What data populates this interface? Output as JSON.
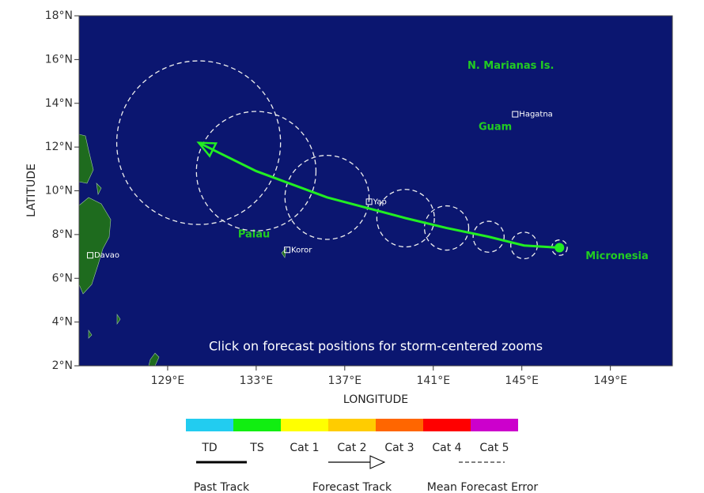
{
  "map": {
    "xlabel": "LONGITUDE",
    "ylabel": "LATITUDE",
    "xlim": [
      125,
      151.8
    ],
    "ylim": [
      2,
      18
    ],
    "xticks": [
      {
        "value": 129,
        "label": "129°E"
      },
      {
        "value": 133,
        "label": "133°E"
      },
      {
        "value": 137,
        "label": "137°E"
      },
      {
        "value": 141,
        "label": "141°E"
      },
      {
        "value": 145,
        "label": "145°E"
      },
      {
        "value": 149,
        "label": "149°E"
      }
    ],
    "yticks": [
      {
        "value": 2,
        "label": "2°N"
      },
      {
        "value": 4,
        "label": "4°N"
      },
      {
        "value": 6,
        "label": "6°N"
      },
      {
        "value": 8,
        "label": "8°N"
      },
      {
        "value": 10,
        "label": "10°N"
      },
      {
        "value": 12,
        "label": "12°N"
      },
      {
        "value": 14,
        "label": "14°N"
      },
      {
        "value": 16,
        "label": "16°N"
      },
      {
        "value": 18,
        "label": "18°N"
      }
    ],
    "note": "Click on forecast positions for storm-centered zooms",
    "places": [
      {
        "name": "Davao",
        "lon": 125.5,
        "lat": 7.05
      },
      {
        "name": "Koror",
        "lon": 134.4,
        "lat": 7.3
      },
      {
        "name": "Yap",
        "lon": 138.1,
        "lat": 9.5
      },
      {
        "name": "Hagatna",
        "lon": 144.7,
        "lat": 13.5
      }
    ],
    "regions": [
      {
        "name": "N. Marianas Is.",
        "lon": 144.5,
        "lat": 15.7
      },
      {
        "name": "Guam",
        "lon": 143.8,
        "lat": 12.9
      },
      {
        "name": "Palau",
        "lon": 132.9,
        "lat": 8.0
      },
      {
        "name": "Micronesia",
        "lon": 149.3,
        "lat": 7.0
      }
    ],
    "forecast": {
      "color": "#22ee22",
      "lon": [
        146.7,
        145.1,
        143.5,
        141.6,
        139.75,
        136.2,
        133.0,
        130.4
      ],
      "lat": [
        7.4,
        7.5,
        7.9,
        8.3,
        8.75,
        9.7,
        10.9,
        12.2
      ],
      "error_radius": [
        0.35,
        0.6,
        0.7,
        1.0,
        1.3,
        1.9,
        2.7,
        3.7
      ]
    }
  },
  "legend": {
    "categories": [
      {
        "label": "TD",
        "color": "#22ccf0"
      },
      {
        "label": "TS",
        "color": "#11ee11"
      },
      {
        "label": "Cat 1",
        "color": "#ffff00"
      },
      {
        "label": "Cat 2",
        "color": "#ffcc00"
      },
      {
        "label": "Cat 3",
        "color": "#ff6600"
      },
      {
        "label": "Cat 4",
        "color": "#ff0000"
      },
      {
        "label": "Cat 5",
        "color": "#cc00cc"
      }
    ],
    "past_track": "Past Track",
    "forecast_track": "Forecast Track",
    "mean_error": "Mean Forecast Error"
  }
}
